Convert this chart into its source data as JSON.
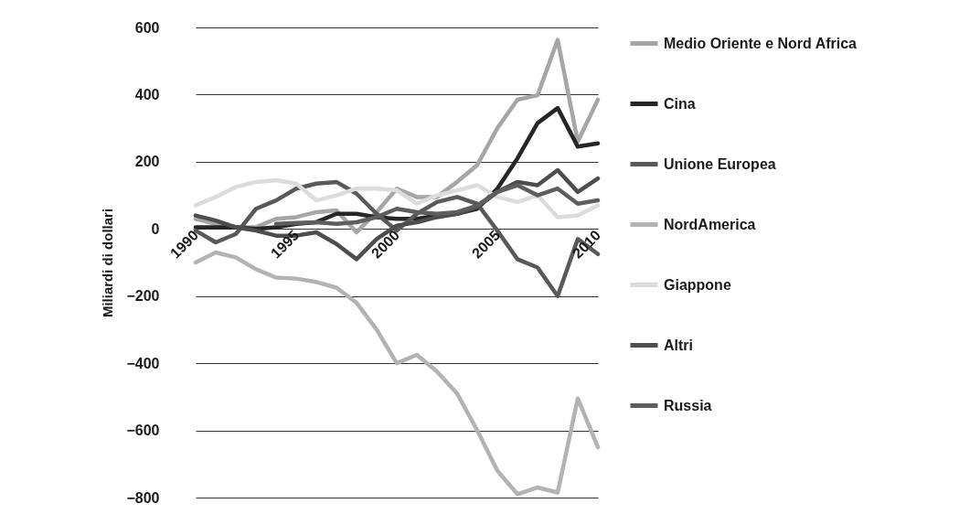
{
  "chart_data": {
    "type": "line",
    "ylabel": "Miliardi di dollari",
    "x": [
      1990,
      1991,
      1992,
      1993,
      1994,
      1995,
      1996,
      1997,
      1998,
      1999,
      2000,
      2001,
      2002,
      2003,
      2004,
      2005,
      2006,
      2007,
      2008,
      2009,
      2010
    ],
    "xlim": [
      1990,
      2010
    ],
    "xticks": [
      1990,
      1995,
      2000,
      2005,
      2010
    ],
    "ylim": [
      -800,
      600
    ],
    "yticks": [
      -800,
      -600,
      -400,
      -200,
      0,
      200,
      400,
      600
    ],
    "grid": "y",
    "legend": "right",
    "line_style": "solid",
    "series": [
      {
        "name": "Medio Oriente e Nord Africa",
        "color": "#a6a6a6",
        "values": [
          30,
          15,
          5,
          5,
          30,
          35,
          50,
          55,
          -10,
          50,
          120,
          95,
          95,
          140,
          190,
          300,
          385,
          398,
          563,
          260,
          385
        ]
      },
      {
        "name": "Cina",
        "color": "#262626",
        "values": [
          5,
          5,
          5,
          0,
          5,
          15,
          20,
          45,
          45,
          35,
          30,
          30,
          40,
          45,
          60,
          120,
          210,
          315,
          360,
          245,
          255
        ]
      },
      {
        "name": "Unione Europea",
        "color": "#595959",
        "values": [
          -5,
          -40,
          -15,
          60,
          85,
          120,
          135,
          140,
          105,
          45,
          -5,
          45,
          80,
          95,
          75,
          -5,
          -90,
          -115,
          -200,
          -30,
          -75
        ]
      },
      {
        "name": "NordAmerica",
        "color": "#b3b3b3",
        "values": [
          -100,
          -70,
          -85,
          -120,
          -145,
          -148,
          -158,
          -175,
          -220,
          -300,
          -400,
          -375,
          -425,
          -490,
          -600,
          -720,
          -790,
          -770,
          -785,
          -505,
          -650
        ]
      },
      {
        "name": "Giappone",
        "color": "#dcdcdc",
        "values": [
          70,
          95,
          125,
          140,
          145,
          135,
          85,
          100,
          120,
          120,
          115,
          75,
          100,
          115,
          130,
          95,
          80,
          100,
          35,
          40,
          70
        ]
      },
      {
        "name": "Altri",
        "color": "#4d4d4d",
        "values": [
          40,
          25,
          5,
          -5,
          -20,
          -20,
          -10,
          -45,
          -90,
          -30,
          10,
          20,
          35,
          45,
          65,
          110,
          140,
          130,
          175,
          110,
          150
        ]
      },
      {
        "name": "Russia",
        "color": "#5e5e5e",
        "values": [
          null,
          null,
          null,
          null,
          15,
          18,
          20,
          15,
          20,
          35,
          60,
          50,
          45,
          50,
          70,
          110,
          130,
          100,
          120,
          75,
          85
        ]
      }
    ]
  }
}
